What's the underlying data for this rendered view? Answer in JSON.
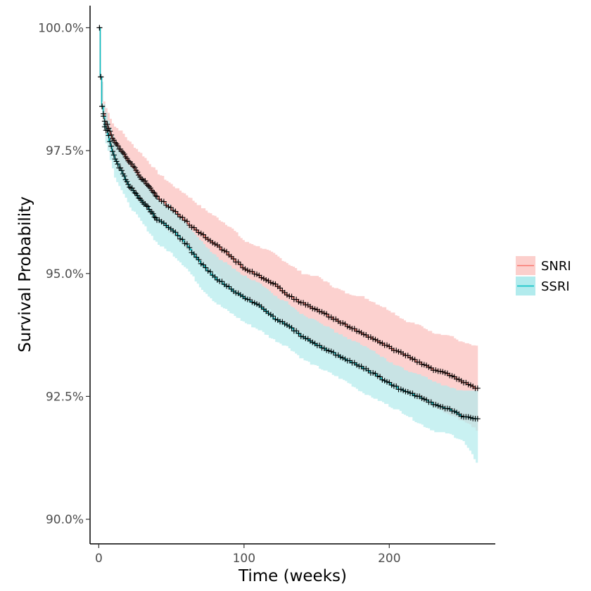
{
  "chart_data": {
    "type": "line",
    "subtype": "kaplan-meier survival curve with confidence bands and censor marks",
    "title": "",
    "xlabel": "Time (weeks)",
    "ylabel": "Survival Probability",
    "xlim": [
      -6,
      273
    ],
    "ylim": [
      0.895,
      1.0045
    ],
    "x_ticks": [
      0,
      100,
      200
    ],
    "x_tick_labels": [
      "0",
      "100",
      "200"
    ],
    "y_ticks": [
      0.9,
      0.925,
      0.95,
      0.975,
      1.0
    ],
    "y_tick_labels": [
      "90.0%",
      "92.5%",
      "95.0%",
      "97.5%",
      "100.0%"
    ],
    "grid": false,
    "legend_position": "right",
    "censor_marker": "+",
    "series": [
      {
        "name": "SNRI",
        "color": "#F8766D",
        "band_color": "#FCCFCC",
        "x": [
          0,
          0.5,
          1,
          2,
          4,
          7,
          10,
          15,
          20,
          30,
          40,
          50,
          60,
          70,
          80,
          90,
          100,
          110,
          120,
          130,
          140,
          150,
          160,
          170,
          180,
          190,
          200,
          210,
          220,
          230,
          240,
          250,
          261
        ],
        "values": [
          1.0,
          0.997,
          0.99,
          0.984,
          0.981,
          0.979,
          0.977,
          0.975,
          0.973,
          0.969,
          0.9655,
          0.963,
          0.9605,
          0.958,
          0.956,
          0.9535,
          0.951,
          0.9495,
          0.948,
          0.9455,
          0.944,
          0.9425,
          0.941,
          0.9395,
          0.938,
          0.9365,
          0.935,
          0.9335,
          0.932,
          0.9305,
          0.9295,
          0.928,
          0.9265
        ],
        "upper": [
          1.0,
          0.998,
          0.992,
          0.986,
          0.984,
          0.982,
          0.98,
          0.979,
          0.977,
          0.974,
          0.9705,
          0.968,
          0.966,
          0.9635,
          0.9615,
          0.9595,
          0.9565,
          0.9555,
          0.954,
          0.952,
          0.95,
          0.9495,
          0.9475,
          0.946,
          0.9455,
          0.944,
          0.9425,
          0.9405,
          0.9395,
          0.938,
          0.9375,
          0.936,
          0.935
        ],
        "lower": [
          1.0,
          0.996,
          0.988,
          0.982,
          0.978,
          0.976,
          0.974,
          0.971,
          0.969,
          0.964,
          0.9605,
          0.958,
          0.955,
          0.9525,
          0.95,
          0.9475,
          0.9455,
          0.9435,
          0.942,
          0.939,
          0.938,
          0.9355,
          0.9345,
          0.933,
          0.9305,
          0.929,
          0.9275,
          0.9265,
          0.9245,
          0.923,
          0.9215,
          0.92,
          0.918
        ]
      },
      {
        "name": "SSRI",
        "color": "#00BFC4",
        "band_color": "#B2EBED",
        "x": [
          0,
          0.5,
          1,
          2,
          4,
          7,
          10,
          15,
          20,
          30,
          40,
          50,
          60,
          70,
          80,
          90,
          100,
          110,
          120,
          130,
          140,
          150,
          160,
          170,
          180,
          190,
          200,
          210,
          220,
          230,
          240,
          250,
          261
        ],
        "values": [
          1.0,
          0.997,
          0.99,
          0.984,
          0.98,
          0.977,
          0.974,
          0.971,
          0.968,
          0.9645,
          0.961,
          0.959,
          0.956,
          0.952,
          0.949,
          0.947,
          0.945,
          0.9435,
          0.941,
          0.9395,
          0.937,
          0.9355,
          0.934,
          0.9325,
          0.931,
          0.9295,
          0.9275,
          0.926,
          0.925,
          0.9235,
          0.9225,
          0.921,
          0.9205
        ],
        "upper": [
          1.0,
          0.998,
          0.992,
          0.986,
          0.983,
          0.98,
          0.977,
          0.975,
          0.972,
          0.969,
          0.9655,
          0.9635,
          0.96,
          0.9565,
          0.9535,
          0.9515,
          0.9495,
          0.948,
          0.9455,
          0.944,
          0.9415,
          0.9405,
          0.9385,
          0.937,
          0.9355,
          0.934,
          0.932,
          0.9305,
          0.9295,
          0.928,
          0.927,
          0.926,
          0.928
        ],
        "lower": [
          1.0,
          0.996,
          0.988,
          0.982,
          0.977,
          0.974,
          0.97,
          0.967,
          0.964,
          0.96,
          0.956,
          0.954,
          0.951,
          0.947,
          0.944,
          0.942,
          0.94,
          0.9385,
          0.9365,
          0.935,
          0.9325,
          0.931,
          0.9295,
          0.928,
          0.926,
          0.9245,
          0.923,
          0.9215,
          0.9195,
          0.918,
          0.9175,
          0.916,
          0.911
        ]
      }
    ]
  }
}
